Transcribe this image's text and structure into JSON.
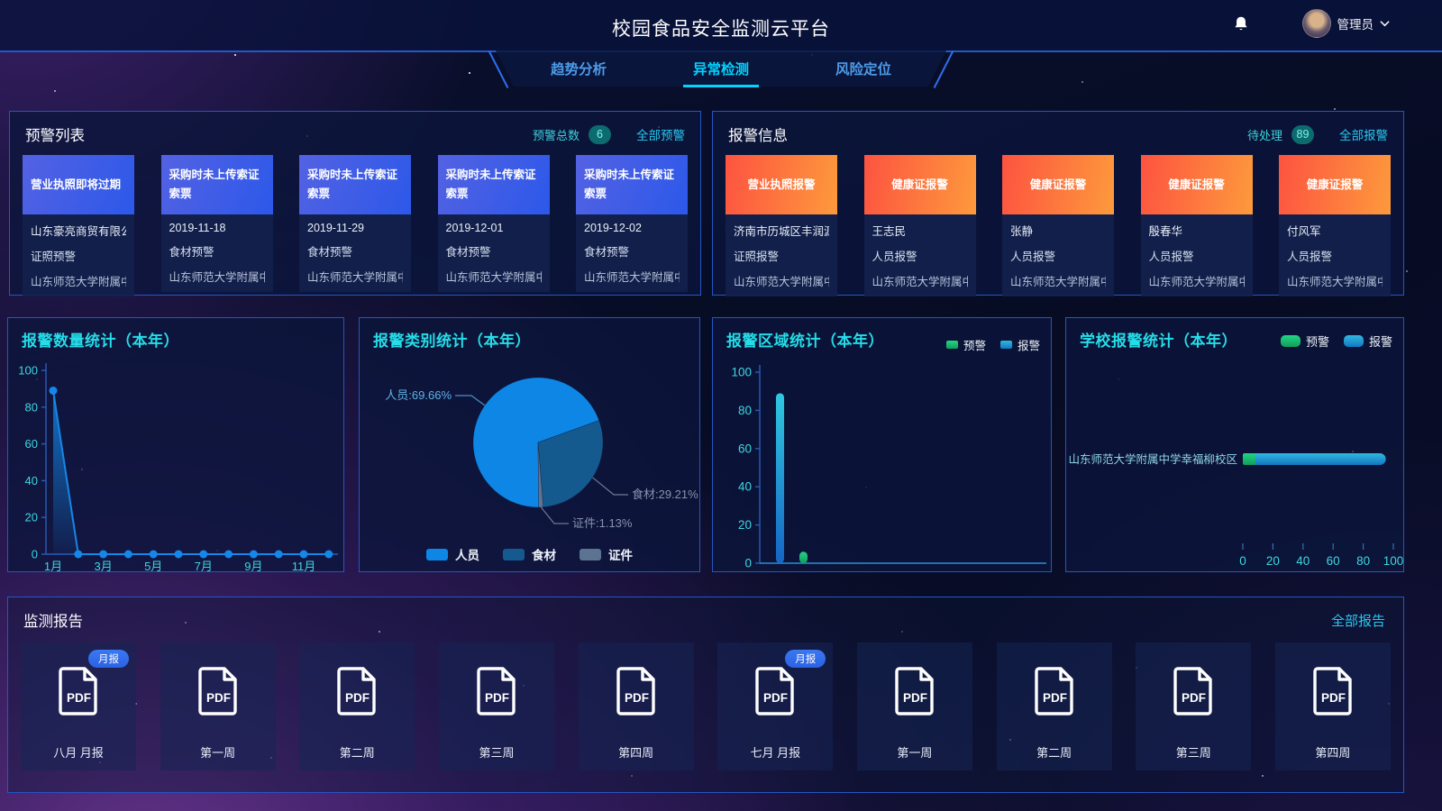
{
  "colors": {
    "accent_cyan": "#00d4ff",
    "link_cyan": "#28c8f0",
    "chart_title_cyan": "#25dce8",
    "warn_header_gradient": [
      "#5462e2",
      "#2c58ea"
    ],
    "alarm_header_gradient": [
      "#fd5340",
      "#fd9a3c"
    ],
    "badge_teal": "#0c6b6e",
    "green_series": "#17b26a",
    "blue_series": "#1e9ad6"
  },
  "header": {
    "title": "校园食品安全监测云平台",
    "admin_label": "管理员"
  },
  "tabs": [
    {
      "label": "趋势分析",
      "active": false
    },
    {
      "label": "异常检测",
      "active": true
    },
    {
      "label": "风险定位",
      "active": false
    }
  ],
  "warning_panel": {
    "title": "预警列表",
    "count_label": "预警总数",
    "count": "6",
    "link_label": "全部预警",
    "cards": [
      {
        "header": "营业执照即将过期",
        "line1": "山东豪亮商贸有限公司",
        "line2": "证照预警",
        "line3": "山东师范大学附属中..."
      },
      {
        "header": "采购时未上传索证索票",
        "line1": "2019-11-18",
        "line2": "食材预警",
        "line3": "山东师范大学附属中..."
      },
      {
        "header": "采购时未上传索证索票",
        "line1": "2019-11-29",
        "line2": "食材预警",
        "line3": "山东师范大学附属中..."
      },
      {
        "header": "采购时未上传索证索票",
        "line1": "2019-12-01",
        "line2": "食材预警",
        "line3": "山东师范大学附属中..."
      },
      {
        "header": "采购时未上传索证索票",
        "line1": "2019-12-02",
        "line2": "食材预警",
        "line3": "山东师范大学附属中..."
      }
    ]
  },
  "alarm_panel": {
    "title": "报警信息",
    "count_label": "待处理",
    "count": "89",
    "link_label": "全部报警",
    "cards": [
      {
        "header": "营业执照报警",
        "line1": "济南市历城区丰润源...",
        "line2": "证照报警",
        "line3": "山东师范大学附属中..."
      },
      {
        "header": "健康证报警",
        "line1": "王志民",
        "line2": "人员报警",
        "line3": "山东师范大学附属中..."
      },
      {
        "header": "健康证报警",
        "line1": "张静",
        "line2": "人员报警",
        "line3": "山东师范大学附属中..."
      },
      {
        "header": "健康证报警",
        "line1": "殷春华",
        "line2": "人员报警",
        "line3": "山东师范大学附属中..."
      },
      {
        "header": "健康证报警",
        "line1": "付风军",
        "line2": "人员报警",
        "line3": "山东师范大学附属中..."
      }
    ]
  },
  "chart_data": [
    {
      "type": "area",
      "title": "报警数量统计（本年）",
      "categories": [
        "1月",
        "2月",
        "3月",
        "4月",
        "5月",
        "6月",
        "7月",
        "8月",
        "9月",
        "10月",
        "11月",
        "12月"
      ],
      "values": [
        89,
        0,
        0,
        0,
        0,
        0,
        0,
        0,
        0,
        0,
        0,
        0
      ],
      "x_labels_shown": [
        "1月",
        "3月",
        "5月",
        "7月",
        "9月",
        "11月"
      ],
      "ylim": [
        0,
        100
      ],
      "y_ticks": [
        0,
        20,
        40,
        60,
        80,
        100
      ],
      "line_color": "#1487e8"
    },
    {
      "type": "pie",
      "title": "报警类别统计（本年）",
      "slices": [
        {
          "name": "人员",
          "value": 69.66,
          "label": "人员:69.66%",
          "color": "#0e86e6"
        },
        {
          "name": "食材",
          "value": 29.21,
          "label": "食材:29.21%",
          "color": "#155a8f"
        },
        {
          "name": "证件",
          "value": 1.13,
          "label": "证件:1.13%",
          "color": "#5d7392"
        }
      ],
      "legend": [
        "人员",
        "食材",
        "证件"
      ]
    },
    {
      "type": "bar",
      "title": "报警区域统计（本年）",
      "series": [
        {
          "name": "报警",
          "value": 89,
          "colors": [
            "#2fc8e0",
            "#1565c5"
          ]
        },
        {
          "name": "预警",
          "value": 6,
          "colors": [
            "#23d584",
            "#109e5c"
          ]
        }
      ],
      "legend": [
        {
          "name": "预警",
          "color": "#17b26a"
        },
        {
          "name": "报警",
          "color": "#1e9ad6"
        }
      ],
      "ylim": [
        0,
        100
      ],
      "y_ticks": [
        0,
        20,
        40,
        60,
        80,
        100
      ]
    },
    {
      "type": "stacked_hbar",
      "title": "学校报警统计（本年）",
      "category": "山东师范大学附属中学幸福柳校区",
      "segments": [
        {
          "name": "预警",
          "value": 6,
          "colors": [
            "#23d584",
            "#109e5c"
          ]
        },
        {
          "name": "报警",
          "value": 89,
          "colors": [
            "#2fb9e0",
            "#1377c0"
          ]
        }
      ],
      "legend": [
        {
          "name": "预警",
          "color": "#17b26a"
        },
        {
          "name": "报警",
          "color": "#1e9ad6"
        }
      ],
      "xlim": [
        0,
        100
      ],
      "x_ticks": [
        0,
        20,
        40,
        60,
        80,
        100
      ]
    }
  ],
  "reports": {
    "title": "监测报告",
    "link_label": "全部报告",
    "items": [
      {
        "label": "八月 月报",
        "badge": "月报"
      },
      {
        "label": "第一周",
        "badge": ""
      },
      {
        "label": "第二周",
        "badge": ""
      },
      {
        "label": "第三周",
        "badge": ""
      },
      {
        "label": "第四周",
        "badge": ""
      },
      {
        "label": "七月 月报",
        "badge": "月报"
      },
      {
        "label": "第一周",
        "badge": ""
      },
      {
        "label": "第二周",
        "badge": ""
      },
      {
        "label": "第三周",
        "badge": ""
      },
      {
        "label": "第四周",
        "badge": ""
      }
    ]
  }
}
